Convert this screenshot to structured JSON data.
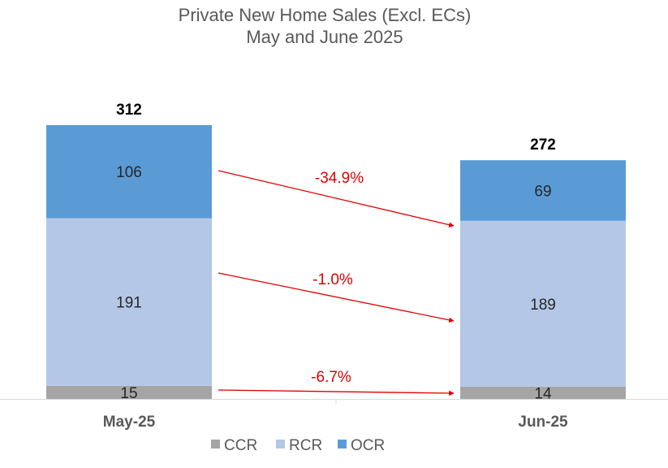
{
  "chart_data": {
    "type": "bar",
    "stacked": true,
    "title": "Private New Home Sales (Excl. ECs)",
    "subtitle": "May and June 2025",
    "categories": [
      "May-25",
      "Jun-25"
    ],
    "series": [
      {
        "name": "CCR",
        "values": [
          15,
          14
        ],
        "color": "#a5a5a5"
      },
      {
        "name": "RCR",
        "values": [
          191,
          189
        ],
        "color": "#b4c7e7"
      },
      {
        "name": "OCR",
        "values": [
          106,
          69
        ],
        "color": "#5b9bd5"
      }
    ],
    "totals": [
      312,
      272
    ],
    "changes": [
      {
        "series": "OCR",
        "label": "-34.9%"
      },
      {
        "series": "RCR",
        "label": "-1.0%"
      },
      {
        "series": "CCR",
        "label": "-6.7%"
      }
    ],
    "change_color": "#e00000",
    "legend": "bottom",
    "grid": false,
    "ylim": [
      0,
      312
    ]
  }
}
